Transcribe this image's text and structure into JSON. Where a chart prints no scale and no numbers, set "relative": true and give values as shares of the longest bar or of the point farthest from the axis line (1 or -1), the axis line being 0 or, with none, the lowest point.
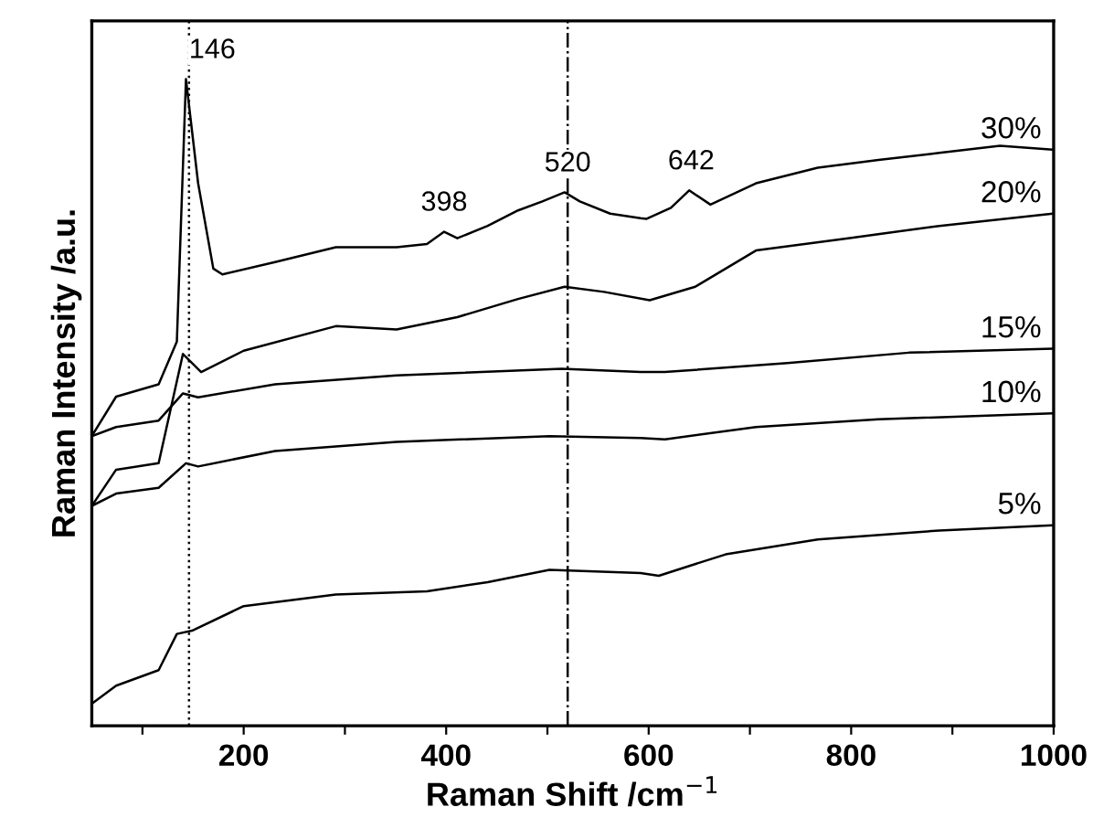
{
  "chart_data": {
    "type": "line",
    "relative": true,
    "xlabel": "Raman Shift /cm$^{−1}$",
    "ylabel": "Raman Intensity /a.u.",
    "xlim": [
      50,
      1000
    ],
    "xticks": [
      {
        "value": 100,
        "label": null
      },
      200,
      {
        "value": 300,
        "label": null
      },
      400,
      {
        "value": 500,
        "label": null
      },
      600,
      {
        "value": 700,
        "label": null
      },
      800,
      {
        "value": 900,
        "label": null
      },
      1000
    ],
    "tick_labels": "x",
    "grid": false,
    "legend": false,
    "marker": "none",
    "line_style": "solid",
    "series": [
      {
        "name": "30%",
        "color": "#000000",
        "x": [
          50,
          74,
          116,
          134,
          143,
          155,
          170,
          179,
          231,
          291,
          351,
          381,
          398,
          411,
          441,
          471,
          495,
          517,
          532,
          562,
          592,
          598,
          622,
          640,
          661,
          706,
          767,
          827,
          887,
          947,
          998
        ],
        "values": [
          0.448,
          0.509,
          0.528,
          0.594,
          1,
          0.839,
          0.707,
          0.698,
          0.717,
          0.74,
          0.74,
          0.745,
          0.764,
          0.754,
          0.773,
          0.797,
          0.811,
          0.825,
          0.811,
          0.792,
          0.785,
          0.784,
          0.801,
          0.828,
          0.806,
          0.839,
          0.863,
          0.875,
          0.886,
          0.897,
          0.891
        ]
      },
      {
        "name": "20%",
        "color": "#000000",
        "x": [
          50,
          74,
          116,
          140,
          158,
          200,
          291,
          351,
          411,
          471,
          517,
          556,
          601,
          646,
          706,
          797,
          887,
          998
        ],
        "values": [
          0.34,
          0.396,
          0.406,
          0.575,
          0.547,
          0.58,
          0.618,
          0.613,
          0.632,
          0.66,
          0.679,
          0.671,
          0.658,
          0.679,
          0.735,
          0.754,
          0.773,
          0.792
        ]
      },
      {
        "name": "15%",
        "color": "#000000",
        "x": [
          50,
          74,
          116,
          140,
          155,
          231,
          351,
          514,
          592,
          616,
          737,
          857,
          998
        ],
        "values": [
          0.448,
          0.462,
          0.472,
          0.514,
          0.508,
          0.528,
          0.542,
          0.552,
          0.547,
          0.547,
          0.561,
          0.577,
          0.583
        ]
      },
      {
        "name": "10%",
        "color": "#000000",
        "x": [
          50,
          74,
          116,
          143,
          155,
          231,
          351,
          502,
          592,
          616,
          706,
          827,
          998
        ],
        "values": [
          0.34,
          0.359,
          0.368,
          0.406,
          0.401,
          0.425,
          0.439,
          0.448,
          0.445,
          0.443,
          0.462,
          0.474,
          0.483
        ]
      },
      {
        "name": "5%",
        "color": "#000000",
        "x": [
          50,
          74,
          116,
          134,
          149,
          200,
          291,
          381,
          441,
          502,
          592,
          610,
          676,
          767,
          887,
          998
        ],
        "values": [
          0.034,
          0.062,
          0.086,
          0.142,
          0.147,
          0.185,
          0.203,
          0.208,
          0.222,
          0.241,
          0.236,
          0.232,
          0.265,
          0.288,
          0.302,
          0.31
        ]
      }
    ],
    "ref_lines": [
      {
        "axis": "x",
        "value": 146,
        "color": "#000000",
        "line_style": "dotted"
      },
      {
        "axis": "x",
        "value": 520,
        "color": "#000000",
        "line_style": "dashed"
      }
    ],
    "annotations": [
      {
        "text": "146",
        "x": 146,
        "y": 1
      },
      {
        "text": "398",
        "x": 398,
        "y": 0.764
      },
      {
        "text": "520",
        "x": 520,
        "y": 0.825
      },
      {
        "text": "642",
        "x": 642,
        "y": 0.828
      }
    ]
  }
}
